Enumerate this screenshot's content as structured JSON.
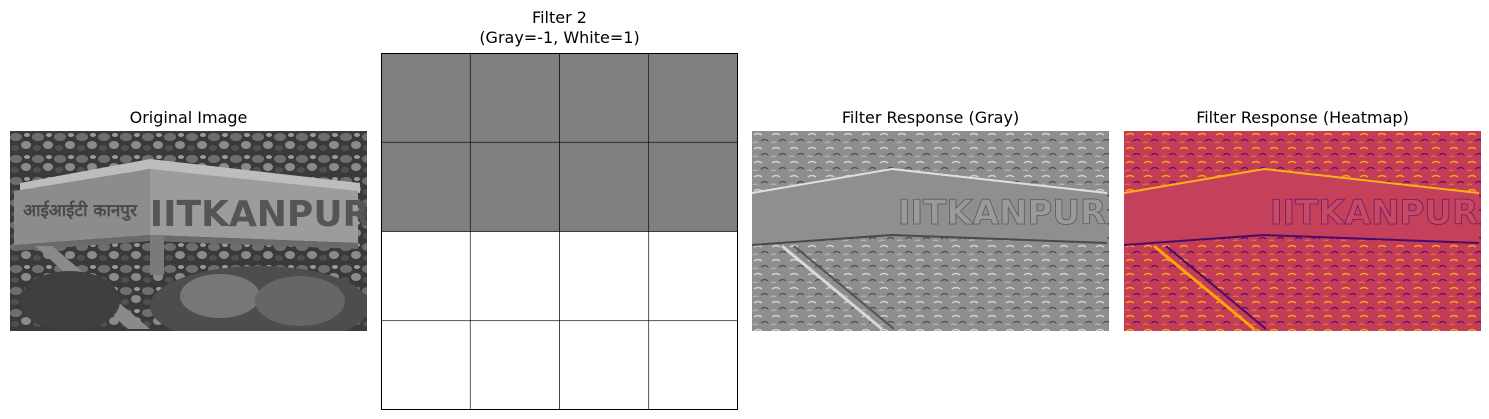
{
  "panels": [
    {
      "title": "Original Image"
    },
    {
      "title_line1": "Filter 2",
      "title_line2": "(Gray=-1, White=1)"
    },
    {
      "title": "Filter Response (Gray)"
    },
    {
      "title": "Filter Response (Heatmap)"
    }
  ],
  "filter": {
    "rows": 4,
    "cols": 4,
    "values": [
      [
        -1,
        -1,
        -1,
        -1
      ],
      [
        -1,
        -1,
        -1,
        -1
      ],
      [
        1,
        1,
        1,
        1
      ],
      [
        1,
        1,
        1,
        1
      ]
    ],
    "colors": {
      "negative": "#808080",
      "positive": "#ffffff",
      "grid": "#000000"
    }
  },
  "photo": {
    "sign_text": "IITKANPUR",
    "hindi_text": "आईआईटी कानपुर"
  },
  "heatmap_colors": {
    "base": "#c43c56",
    "dark": "#4a0c6b",
    "bright": "#fca50a"
  }
}
